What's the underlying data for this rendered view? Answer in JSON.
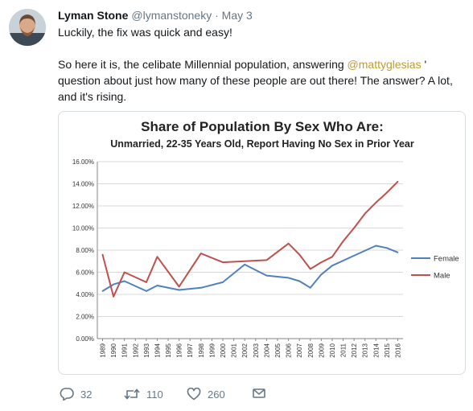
{
  "tweet": {
    "author_name": "Lyman Stone",
    "handle": "@lymanstoneky",
    "separator": "·",
    "date": "May 3",
    "line1": "Luckily, the fix was quick and easy!",
    "text_before_mention": "So here it is, the celibate Millennial population, answering ",
    "mention": "@mattyglesias",
    "text_after_mention": " ' question about just how many of these people are out there! The answer? A lot, and it's rising.",
    "replies": "32",
    "retweets": "110",
    "likes": "260"
  },
  "icons": {
    "reply": "reply-icon",
    "retweet": "retweet-icon",
    "like": "heart-icon",
    "message": "envelope-icon"
  },
  "colors": {
    "mention": "#c19b2e",
    "female": "#4f81bd",
    "male": "#c0504d"
  },
  "chart_data": {
    "type": "line",
    "title": "Share of Population By Sex Who Are:",
    "subtitle": "Unmarried, 22-35 Years Old, Report Having No Sex in Prior Year",
    "x": [
      "1989",
      "1990",
      "1991",
      "1993",
      "1994",
      "1996",
      "1998",
      "2000",
      "2002",
      "2004",
      "2006",
      "2007",
      "2008",
      "2009",
      "2010",
      "2012",
      "2014",
      "2015",
      "2016"
    ],
    "x_tick_labels": [
      "1989",
      "1990",
      "1991",
      "1992",
      "1993",
      "1994",
      "1995",
      "1996",
      "1997",
      "1998",
      "1999",
      "2000",
      "2001",
      "2002",
      "2003",
      "2004",
      "2005",
      "2006",
      "2007",
      "2008",
      "2009",
      "2010",
      "2011",
      "2012",
      "2013",
      "2014",
      "2015",
      "2016"
    ],
    "y_ticks": [
      "0.00%",
      "2.00%",
      "4.00%",
      "6.00%",
      "8.00%",
      "10.00%",
      "12.00%",
      "14.00%",
      "16.00%"
    ],
    "ylim": [
      0,
      16
    ],
    "grid": true,
    "legend_position": "right",
    "series": [
      {
        "name": "Female",
        "color": "#4f81bd",
        "x": [
          1989,
          1990,
          1991,
          1993,
          1994,
          1996,
          1998,
          2000,
          2002,
          2004,
          2006,
          2007,
          2008,
          2009,
          2010,
          2012,
          2014,
          2015,
          2016
        ],
        "values": [
          4.3,
          4.9,
          5.2,
          4.3,
          4.8,
          4.4,
          4.6,
          5.1,
          6.7,
          5.7,
          5.5,
          5.2,
          4.6,
          5.8,
          6.6,
          7.5,
          8.4,
          8.2,
          7.8
        ]
      },
      {
        "name": "Male",
        "color": "#c0504d",
        "x": [
          1989,
          1990,
          1991,
          1993,
          1994,
          1996,
          1998,
          2000,
          2002,
          2004,
          2006,
          2007,
          2008,
          2009,
          2010,
          2011,
          2012,
          2013,
          2014,
          2015,
          2016
        ],
        "values": [
          7.6,
          3.8,
          6.0,
          5.1,
          7.4,
          4.7,
          7.7,
          6.9,
          7.0,
          7.1,
          8.6,
          7.6,
          6.3,
          6.9,
          7.4,
          8.8,
          10.0,
          11.3,
          12.3,
          13.2,
          14.2
        ]
      }
    ]
  }
}
